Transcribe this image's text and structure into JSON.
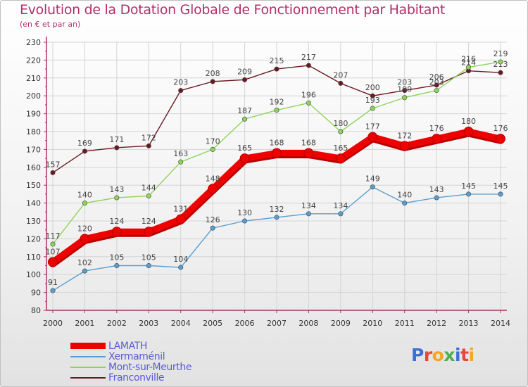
{
  "title": "Evolution de la Dotation Globale de Fonctionnement par Habitant",
  "subtitle": "(en € et par an)",
  "brand": {
    "text": "Proxiti",
    "letters": [
      "P",
      "r",
      "o",
      "x",
      "i",
      "t",
      "i"
    ],
    "letter_colors": [
      "#3b6fd4",
      "#e8463a",
      "#f5a623",
      "#4caf50",
      "#3b6fd4",
      "#e8463a",
      "#f5a623"
    ]
  },
  "chart_data": {
    "type": "line",
    "x": [
      2000,
      2001,
      2002,
      2003,
      2004,
      2005,
      2006,
      2007,
      2008,
      2009,
      2010,
      2011,
      2012,
      2013,
      2014
    ],
    "ylim": [
      80,
      230
    ],
    "yticks": [
      80,
      90,
      100,
      110,
      120,
      130,
      140,
      150,
      160,
      170,
      180,
      190,
      200,
      210,
      220,
      230
    ],
    "grid": true,
    "legend_position": "bottom-left",
    "series": [
      {
        "name": "Franconville",
        "color": "#6b1a22",
        "values": [
          157,
          169,
          171,
          172,
          203,
          208,
          209,
          215,
          217,
          207,
          200,
          203,
          206,
          214,
          213
        ]
      },
      {
        "name": "Mont-sur-Meurthe",
        "color": "#8fd45a",
        "values": [
          117,
          140,
          143,
          144,
          163,
          170,
          187,
          192,
          196,
          180,
          193,
          199,
          203,
          216,
          219
        ]
      },
      {
        "name": "Xermaménil",
        "color": "#5a9fd0",
        "values": [
          91,
          102,
          105,
          105,
          104,
          126,
          130,
          132,
          134,
          134,
          149,
          140,
          143,
          145,
          145
        ]
      },
      {
        "name": "LAMATH",
        "color": "#ee0000",
        "values": [
          107,
          120,
          124,
          124,
          131,
          148,
          165,
          168,
          168,
          165,
          177,
          172,
          176,
          180,
          176
        ]
      }
    ],
    "legend_order": [
      "LAMATH",
      "Xermaménil",
      "Mont-sur-Meurthe",
      "Franconville"
    ]
  }
}
